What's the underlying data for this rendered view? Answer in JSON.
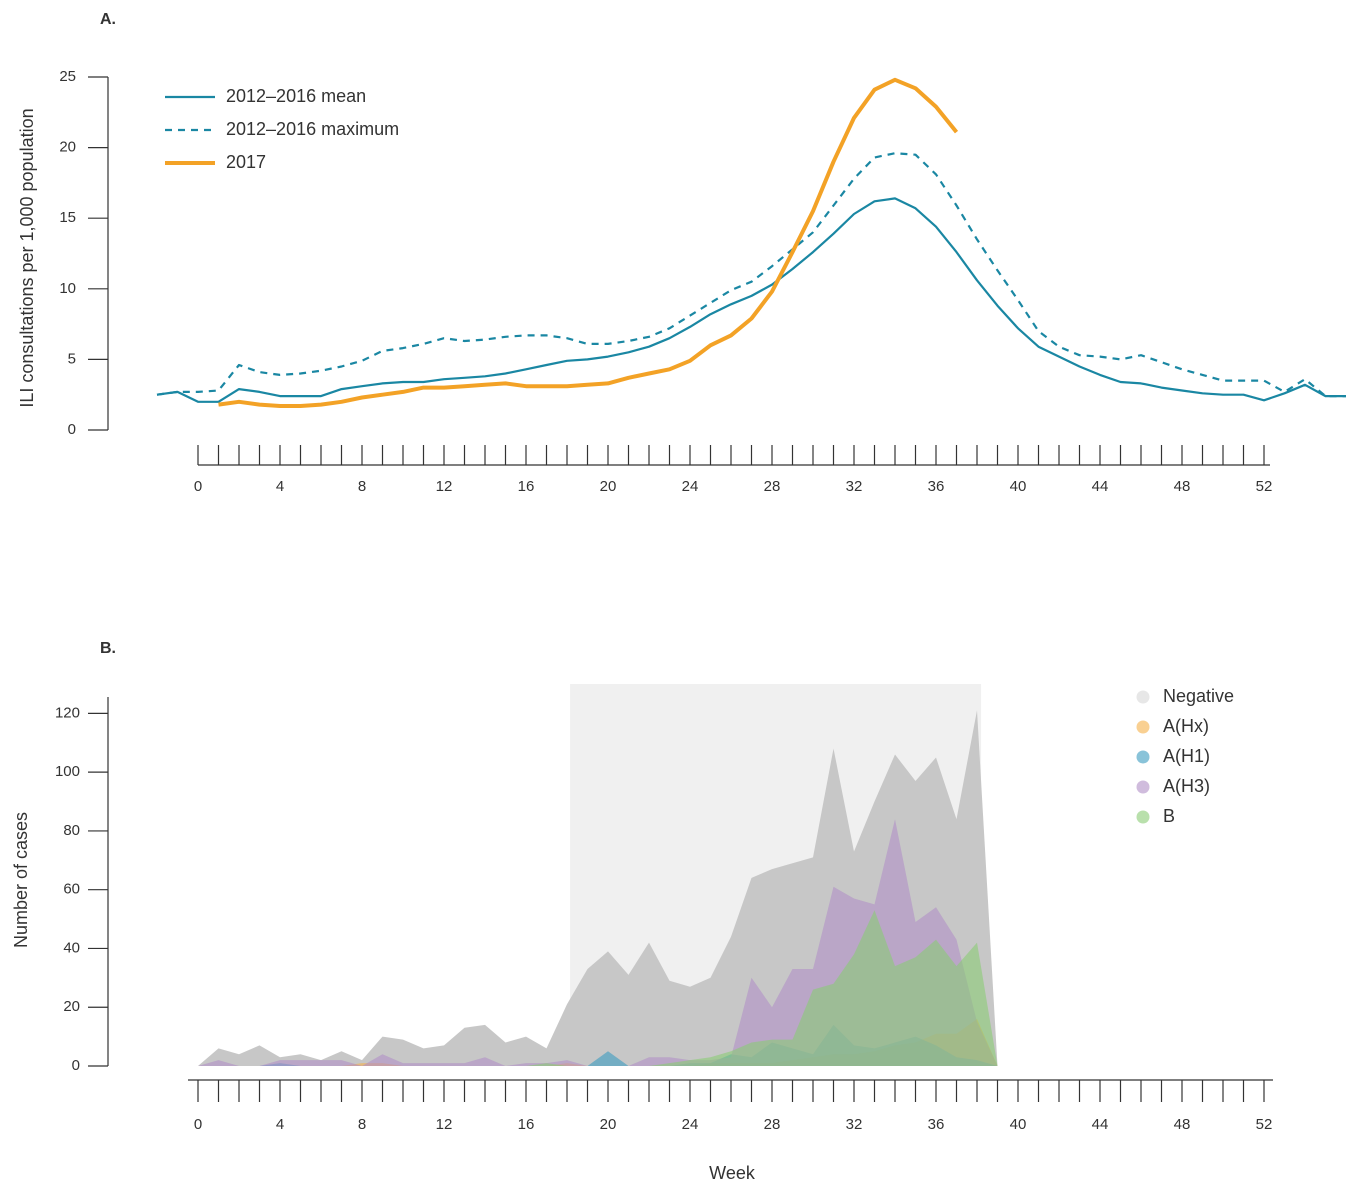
{
  "chart_data": [
    {
      "type": "line",
      "label": "A.",
      "ylabel": "ILI consultations per 1,000 population",
      "x": [
        -2,
        -1,
        0,
        1,
        2,
        3,
        4,
        5,
        6,
        7,
        8,
        9,
        10,
        11,
        12,
        13,
        14,
        15,
        16,
        17,
        18,
        19,
        20,
        21,
        22,
        23,
        24,
        25,
        26,
        27,
        28,
        29,
        30,
        31,
        32,
        33,
        34,
        35,
        36,
        37,
        38,
        39,
        40,
        41,
        42,
        43,
        44,
        45,
        46,
        47,
        48,
        49,
        50,
        51,
        52,
        53,
        54,
        55,
        56
      ],
      "series": [
        {
          "name": "2012–2016 mean",
          "color": "#1a87a3",
          "style": "solid",
          "values": [
            2.5,
            2.7,
            2.0,
            2.0,
            2.9,
            2.7,
            2.4,
            2.4,
            2.4,
            2.9,
            3.1,
            3.3,
            3.4,
            3.4,
            3.6,
            3.7,
            3.8,
            4.0,
            4.3,
            4.6,
            4.9,
            5.0,
            5.2,
            5.5,
            5.9,
            6.5,
            7.3,
            8.2,
            8.9,
            9.5,
            10.3,
            11.4,
            12.6,
            13.9,
            15.3,
            16.2,
            16.4,
            15.7,
            14.4,
            12.6,
            10.6,
            8.8,
            7.2,
            5.9,
            5.2,
            4.5,
            3.9,
            3.4,
            3.3,
            3.0,
            2.8,
            2.6,
            2.5,
            2.5,
            2.1,
            2.6,
            3.2,
            2.4,
            2.4
          ]
        },
        {
          "name": "2012–2016 maximum",
          "color": "#1a87a3",
          "style": "dashed",
          "values": [
            2.5,
            2.7,
            2.7,
            2.8,
            4.6,
            4.1,
            3.9,
            4.0,
            4.2,
            4.5,
            4.9,
            5.6,
            5.8,
            6.1,
            6.5,
            6.3,
            6.4,
            6.6,
            6.7,
            6.7,
            6.5,
            6.1,
            6.1,
            6.3,
            6.6,
            7.2,
            8.1,
            9.0,
            9.9,
            10.5,
            11.6,
            12.8,
            14.0,
            15.9,
            17.8,
            19.3,
            19.6,
            19.5,
            18.1,
            15.9,
            13.5,
            11.3,
            9.2,
            7.0,
            5.9,
            5.3,
            5.2,
            5.0,
            5.3,
            4.8,
            4.3,
            3.9,
            3.5,
            3.5,
            3.5,
            2.7,
            3.6,
            2.4,
            2.4
          ]
        },
        {
          "name": "2017",
          "color": "#f3a226",
          "style": "thick",
          "values": [
            null,
            null,
            null,
            1.8,
            2.0,
            1.8,
            1.7,
            1.7,
            1.8,
            2.0,
            2.3,
            2.5,
            2.7,
            3.0,
            3.0,
            3.1,
            3.2,
            3.3,
            3.1,
            3.1,
            3.1,
            3.2,
            3.3,
            3.7,
            4.0,
            4.3,
            4.9,
            6.0,
            6.7,
            7.9,
            9.8,
            12.6,
            15.5,
            19.0,
            22.1,
            24.1,
            24.8,
            24.2,
            22.9,
            21.1,
            null,
            null,
            null,
            null,
            null,
            null,
            null,
            null,
            null,
            null,
            null,
            null,
            null,
            null,
            null,
            null,
            null,
            null,
            null
          ]
        }
      ],
      "xlim": [
        -2,
        56
      ],
      "xticks": [
        0,
        4,
        8,
        12,
        16,
        20,
        24,
        28,
        32,
        36,
        40,
        44,
        48,
        52
      ],
      "xminor_ticks": [
        0,
        1,
        2,
        3,
        4,
        5,
        6,
        7,
        8,
        9,
        10,
        11,
        12,
        13,
        14,
        15,
        16,
        17,
        18,
        19,
        20,
        21,
        22,
        23,
        24,
        25,
        26,
        27,
        28,
        29,
        30,
        31,
        32,
        33,
        34,
        35,
        36,
        37,
        38,
        39,
        40,
        41,
        42,
        43,
        44,
        45,
        46,
        47,
        48,
        49,
        50,
        51,
        52
      ],
      "ylim": [
        0,
        25
      ],
      "yticks": [
        0,
        5,
        10,
        15,
        20,
        25
      ],
      "legend": "top-left"
    },
    {
      "type": "area",
      "label": "B.",
      "ylabel": "Number of cases",
      "xlabel": "Week",
      "x": [
        0,
        1,
        2,
        3,
        4,
        5,
        6,
        7,
        8,
        9,
        10,
        11,
        12,
        13,
        14,
        15,
        16,
        17,
        18,
        19,
        20,
        21,
        22,
        23,
        24,
        25,
        26,
        27,
        28,
        29,
        30,
        31,
        32,
        33,
        34,
        35,
        36,
        37,
        38,
        39
      ],
      "series": [
        {
          "name": "Negative",
          "color": "#c4c4c4",
          "values": [
            0,
            6,
            4,
            7,
            3,
            4,
            2,
            5,
            2,
            10,
            9,
            6,
            7,
            13,
            14,
            8,
            10,
            6,
            21,
            33,
            39,
            31,
            42,
            29,
            27,
            30,
            44,
            64,
            67,
            69,
            71,
            108,
            73,
            90,
            106,
            97,
            105,
            84,
            121,
            0
          ]
        },
        {
          "name": "A(Hx)",
          "color": "#f5b04a",
          "values": [
            0,
            0,
            0,
            0,
            0,
            0,
            0,
            0,
            1,
            1,
            0,
            0,
            0,
            0,
            0,
            0,
            0,
            0,
            1,
            0,
            0,
            0,
            0,
            0,
            0,
            1,
            1,
            1,
            1,
            2,
            3,
            4,
            4,
            5,
            7,
            8,
            11,
            11,
            16,
            0
          ]
        },
        {
          "name": "A(H1)",
          "color": "#3a9bbf",
          "values": [
            0,
            0,
            0,
            0,
            1,
            0,
            0,
            0,
            0,
            0,
            0,
            0,
            0,
            0,
            0,
            0,
            0,
            0,
            0,
            0,
            5,
            0,
            0,
            0,
            1,
            1,
            4,
            3,
            8,
            6,
            4,
            14,
            7,
            6,
            8,
            10,
            7,
            3,
            2,
            0
          ]
        },
        {
          "name": "A(H3)",
          "color": "#b08fc6",
          "values": [
            0,
            2,
            0,
            0,
            2,
            2,
            2,
            2,
            0,
            4,
            1,
            1,
            1,
            1,
            3,
            0,
            1,
            1,
            2,
            0,
            0,
            0,
            3,
            3,
            2,
            2,
            3,
            30,
            20,
            33,
            33,
            61,
            57,
            55,
            84,
            49,
            54,
            43,
            15,
            0
          ]
        },
        {
          "name": "B",
          "color": "#8acb74",
          "values": [
            0,
            0,
            0,
            0,
            0,
            0,
            0,
            0,
            0,
            0,
            0,
            0,
            0,
            0,
            0,
            0,
            0,
            1,
            0,
            0,
            0,
            0,
            0,
            1,
            2,
            3,
            5,
            8,
            9,
            9,
            26,
            28,
            38,
            53,
            34,
            37,
            43,
            34,
            42,
            0
          ]
        }
      ],
      "highlight_xlim": [
        18.15,
        38.2
      ],
      "xlim": [
        0,
        52
      ],
      "xticks": [
        0,
        4,
        8,
        12,
        16,
        20,
        24,
        28,
        32,
        36,
        40,
        44,
        48,
        52
      ],
      "xminor_ticks": [
        0,
        1,
        2,
        3,
        4,
        5,
        6,
        7,
        8,
        9,
        10,
        11,
        12,
        13,
        14,
        15,
        16,
        17,
        18,
        19,
        20,
        21,
        22,
        23,
        24,
        25,
        26,
        27,
        28,
        29,
        30,
        31,
        32,
        33,
        34,
        35,
        36,
        37,
        38,
        39,
        40,
        41,
        42,
        43,
        44,
        45,
        46,
        47,
        48,
        49,
        50,
        51,
        52
      ],
      "ylim": [
        0,
        130
      ],
      "yticks": [
        0,
        20,
        40,
        60,
        80,
        100,
        120
      ],
      "legend": "top-right"
    }
  ]
}
